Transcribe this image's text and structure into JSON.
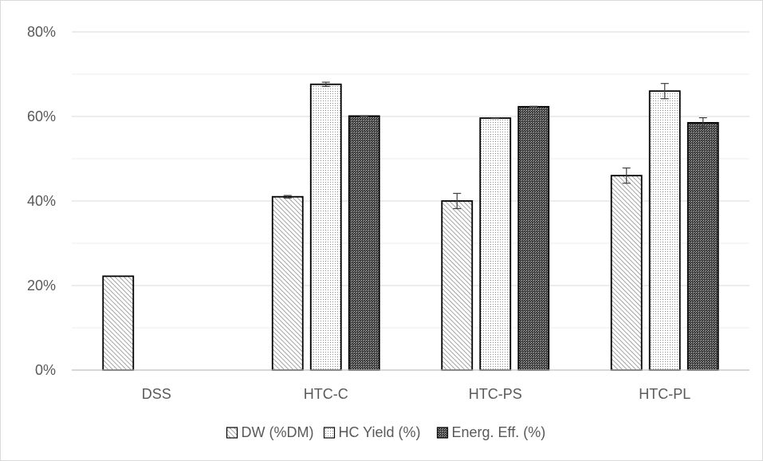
{
  "chart_data": {
    "type": "bar",
    "title": "",
    "xlabel": "",
    "ylabel": "",
    "ylim": [
      0,
      0.8
    ],
    "y_ticks": [
      "0%",
      "20%",
      "40%",
      "60%",
      "80%"
    ],
    "y_tick_values": [
      0,
      0.2,
      0.4,
      0.6,
      0.8
    ],
    "grid": true,
    "legend_position": "bottom",
    "categories": [
      "DSS",
      "HTC-C",
      "HTC-PS",
      "HTC-PL"
    ],
    "series": [
      {
        "name": "DW (%DM)",
        "pattern": "diagonal-hatch",
        "values": [
          0.222,
          0.41,
          0.4,
          0.46
        ],
        "errors": [
          0,
          0.003,
          0.018,
          0.018
        ]
      },
      {
        "name": "HC Yield (%)",
        "pattern": "dotted",
        "values": [
          null,
          0.676,
          0.596,
          0.66
        ],
        "errors": [
          null,
          0.005,
          0.001,
          0.018
        ]
      },
      {
        "name": "Energ. Eff. (%)",
        "pattern": "dense-crosshatch",
        "values": [
          null,
          0.601,
          0.623,
          0.585
        ],
        "errors": [
          null,
          0.001,
          0.001,
          0.012
        ]
      }
    ],
    "colors": {
      "grid": "#d9d9d9",
      "axis": "#bfbfbf",
      "bar_outline": "#000000",
      "text": "#595959"
    }
  }
}
